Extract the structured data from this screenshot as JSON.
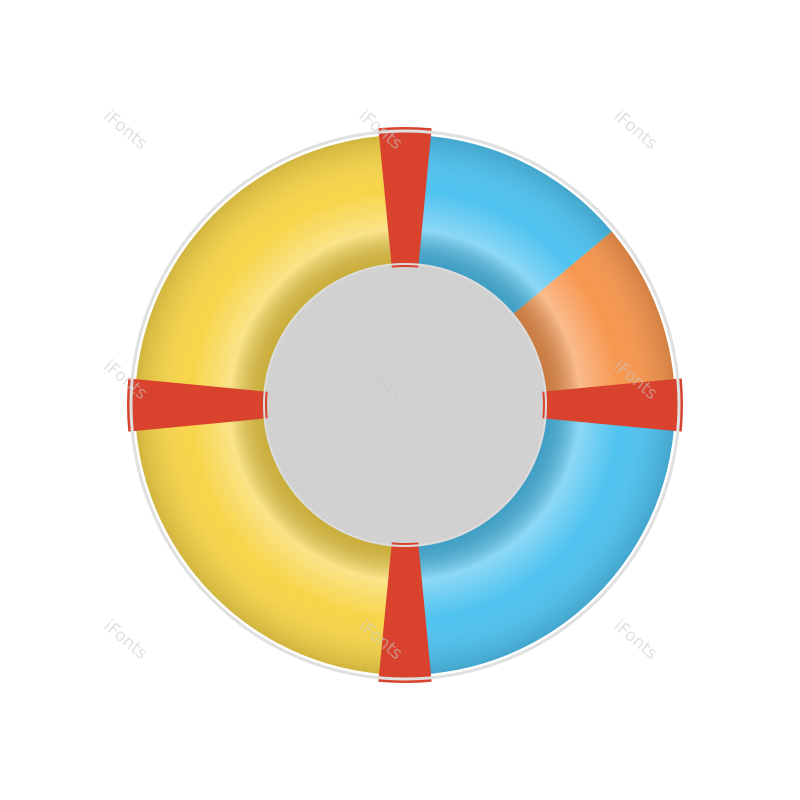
{
  "image": {
    "subject": "lifebuoy",
    "colors": {
      "yellow": "#f7d54a",
      "blue": "#4fc3f0",
      "orange": "#f7974f",
      "red_band": "#d9432e",
      "rope": "#e6e6e6"
    }
  },
  "watermark": {
    "text": "iFonts"
  }
}
